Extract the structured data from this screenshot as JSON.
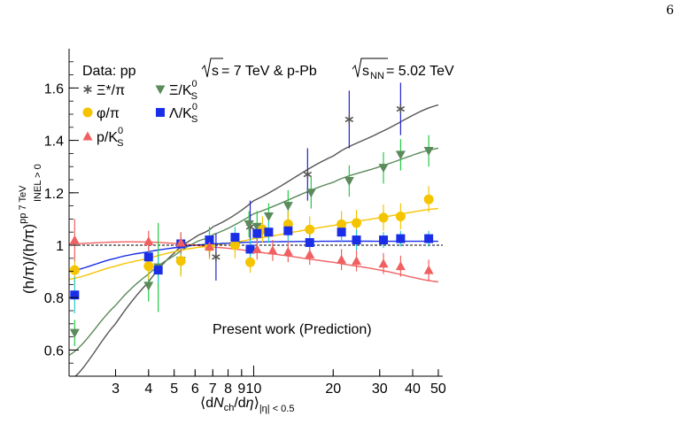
{
  "page_number": "6",
  "chart_data": {
    "type": "scatter",
    "title": "Data: pp √s = 7 TeV & p-Pb √sNN = 5.02 TeV",
    "title_parts": {
      "prefix": "Data: pp ",
      "sqrt1": "s",
      "mid": " = 7 TeV & p-Pb ",
      "sqrt2": "s",
      "sqrt2_sub": "NN",
      "suffix": " =  5.02 TeV"
    },
    "annotation": "Present work (Prediction)",
    "xlabel": "⟨dNch/dη⟩|η| < 0.5",
    "xlabel_parts": {
      "open": "⟨d",
      "N": "N",
      "ch": "ch",
      "slash": "/d",
      "eta": "η",
      "close": "⟩",
      "sub": "|η| < 0.5"
    },
    "ylabel": "(h/π)/(h/π)INEL>0 pp 7 TeV",
    "ylabel_parts": {
      "main": "(h/π)/(h/π)",
      "sup": "pp 7 TeV",
      "sub": "INEL > 0"
    },
    "x_scale": "log",
    "xlim": [
      2.0,
      52
    ],
    "ylim": [
      0.5,
      1.75
    ],
    "x_ticks": [
      {
        "value": 3,
        "label": "3"
      },
      {
        "value": 4,
        "label": "4"
      },
      {
        "value": 5,
        "label": "5"
      },
      {
        "value": 6,
        "label": "6"
      },
      {
        "value": 7,
        "label": "7"
      },
      {
        "value": 8,
        "label": "8"
      },
      {
        "value": 9,
        "label": "9"
      },
      {
        "value": 10,
        "label": "10"
      },
      {
        "value": 20,
        "label": "20"
      },
      {
        "value": 30,
        "label": "30"
      },
      {
        "value": 40,
        "label": "40"
      },
      {
        "value": 50,
        "label": "50"
      }
    ],
    "y_ticks": [
      {
        "value": 0.6,
        "label": "0.6"
      },
      {
        "value": 0.8,
        "label": "0.8"
      },
      {
        "value": 1.0,
        "label": "1"
      },
      {
        "value": 1.2,
        "label": "1.2"
      },
      {
        "value": 1.4,
        "label": "1.4"
      },
      {
        "value": 1.6,
        "label": "1.6"
      }
    ],
    "reference_line": 1.0,
    "legend_position": "top-left",
    "series": [
      {
        "name": "Ξ*/π",
        "legend_main": "Ξ*/π",
        "legend_sup": "",
        "legend_sub": "",
        "marker": "star",
        "color": "#555555",
        "err_color": "#2222cc",
        "curve": [
          [
            2.0,
            0.48
          ],
          [
            3,
            0.7
          ],
          [
            4,
            0.86
          ],
          [
            5,
            0.97
          ],
          [
            6,
            1.03
          ],
          [
            7,
            1.07
          ],
          [
            10,
            1.17
          ],
          [
            20,
            1.34
          ],
          [
            30,
            1.43
          ],
          [
            50,
            1.535
          ]
        ],
        "points": [
          {
            "x": 7.2,
            "y": 0.955,
            "err": 0.09
          },
          {
            "x": 9.7,
            "y": 1.07,
            "err": 0.1
          },
          {
            "x": 16,
            "y": 1.27,
            "err": 0.1
          },
          {
            "x": 23,
            "y": 1.48,
            "err": 0.11
          },
          {
            "x": 36,
            "y": 1.52,
            "err": 0.1
          }
        ]
      },
      {
        "name": "Ξ/K0S",
        "legend_main": "Ξ/K",
        "legend_sup": "0",
        "legend_sub": "S",
        "marker": "triangle-down",
        "color": "#5b8a5b",
        "err_color": "#22cc44",
        "curve": [
          [
            2.0,
            0.58
          ],
          [
            3,
            0.77
          ],
          [
            4,
            0.89
          ],
          [
            5,
            0.96
          ],
          [
            6,
            1.01
          ],
          [
            7,
            1.04
          ],
          [
            10,
            1.12
          ],
          [
            20,
            1.24
          ],
          [
            30,
            1.3
          ],
          [
            50,
            1.37
          ]
        ],
        "points": [
          {
            "x": 2.1,
            "y": 0.665,
            "err": 0.05
          },
          {
            "x": 4.0,
            "y": 0.845,
            "err": 0.06
          },
          {
            "x": 4.35,
            "y": 0.915,
            "err": 0.17
          },
          {
            "x": 5.3,
            "y": 0.94,
            "err": 0.05
          },
          {
            "x": 6.8,
            "y": 1.02,
            "err": 0.05
          },
          {
            "x": 9.6,
            "y": 1.08,
            "err": 0.05
          },
          {
            "x": 10.3,
            "y": 1.07,
            "err": 0.06
          },
          {
            "x": 11.4,
            "y": 1.11,
            "err": 0.05
          },
          {
            "x": 13.5,
            "y": 1.15,
            "err": 0.06
          },
          {
            "x": 16.5,
            "y": 1.2,
            "err": 0.06
          },
          {
            "x": 23,
            "y": 1.245,
            "err": 0.06
          },
          {
            "x": 31,
            "y": 1.295,
            "err": 0.06
          },
          {
            "x": 36,
            "y": 1.345,
            "err": 0.06
          },
          {
            "x": 46,
            "y": 1.36,
            "err": 0.06
          }
        ]
      },
      {
        "name": "φ/π",
        "legend_main": "φ/π",
        "legend_sup": "",
        "legend_sub": "",
        "marker": "circle",
        "color": "#f5c400",
        "err_color": "#f5c400",
        "curve": [
          [
            2.0,
            0.87
          ],
          [
            3,
            0.92
          ],
          [
            4,
            0.95
          ],
          [
            5,
            0.975
          ],
          [
            6,
            0.99
          ],
          [
            7,
            1.0
          ],
          [
            10,
            1.025
          ],
          [
            20,
            1.075
          ],
          [
            30,
            1.105
          ],
          [
            50,
            1.14
          ]
        ],
        "points": [
          {
            "x": 2.1,
            "y": 0.905,
            "err": 0.06
          },
          {
            "x": 4.0,
            "y": 0.92,
            "err": 0.05
          },
          {
            "x": 5.3,
            "y": 0.94,
            "err": 0.06
          },
          {
            "x": 6.8,
            "y": 0.995,
            "err": 0.05
          },
          {
            "x": 8.5,
            "y": 1.0,
            "err": 0.05
          },
          {
            "x": 9.7,
            "y": 0.935,
            "err": 0.04
          },
          {
            "x": 10.8,
            "y": 1.06,
            "err": 0.05
          },
          {
            "x": 13.5,
            "y": 1.08,
            "err": 0.05
          },
          {
            "x": 16.3,
            "y": 1.06,
            "err": 0.05
          },
          {
            "x": 21.5,
            "y": 1.08,
            "err": 0.05
          },
          {
            "x": 24.5,
            "y": 1.085,
            "err": 0.05
          },
          {
            "x": 31,
            "y": 1.105,
            "err": 0.05
          },
          {
            "x": 36,
            "y": 1.11,
            "err": 0.05
          },
          {
            "x": 46,
            "y": 1.175,
            "err": 0.05
          }
        ]
      },
      {
        "name": "Λ/K0S",
        "legend_main": "Λ/K",
        "legend_sup": "0",
        "legend_sub": "S",
        "marker": "square",
        "color": "#1a2ee8",
        "err_color": "#22cccc",
        "curve": [
          [
            2.0,
            0.9
          ],
          [
            3,
            0.95
          ],
          [
            4,
            0.975
          ],
          [
            5,
            0.99
          ],
          [
            6,
            1.0
          ],
          [
            7,
            1.005
          ],
          [
            10,
            1.012
          ],
          [
            20,
            1.015
          ],
          [
            30,
            1.015
          ],
          [
            50,
            1.015
          ]
        ],
        "points": [
          {
            "x": 2.1,
            "y": 0.81,
            "err": 0.07
          },
          {
            "x": 4.0,
            "y": 0.955,
            "err": 0.05
          },
          {
            "x": 4.35,
            "y": 0.905,
            "err": 0.05
          },
          {
            "x": 5.3,
            "y": 1.005,
            "err": 0.04
          },
          {
            "x": 6.8,
            "y": 1.02,
            "err": 0.04
          },
          {
            "x": 8.5,
            "y": 1.03,
            "err": 0.04
          },
          {
            "x": 9.7,
            "y": 0.985,
            "err": 0.04
          },
          {
            "x": 10.3,
            "y": 1.045,
            "err": 0.04
          },
          {
            "x": 11.4,
            "y": 1.05,
            "err": 0.04
          },
          {
            "x": 13.5,
            "y": 1.055,
            "err": 0.04
          },
          {
            "x": 16.3,
            "y": 1.01,
            "err": 0.04
          },
          {
            "x": 21.5,
            "y": 1.05,
            "err": 0.04
          },
          {
            "x": 24.5,
            "y": 1.02,
            "err": 0.04
          },
          {
            "x": 31,
            "y": 1.02,
            "err": 0.03
          },
          {
            "x": 36,
            "y": 1.025,
            "err": 0.03
          },
          {
            "x": 46,
            "y": 1.025,
            "err": 0.03
          }
        ]
      },
      {
        "name": "p/K0S",
        "legend_main": "p/K",
        "legend_sup": "0",
        "legend_sub": "S",
        "marker": "triangle-up",
        "color": "#f06060",
        "err_color": "#f06060",
        "curve": [
          [
            2.0,
            1.005
          ],
          [
            3,
            1.012
          ],
          [
            4,
            1.012
          ],
          [
            5,
            1.007
          ],
          [
            6,
            1.0
          ],
          [
            7,
            0.993
          ],
          [
            10,
            0.975
          ],
          [
            20,
            0.935
          ],
          [
            30,
            0.905
          ],
          [
            50,
            0.86
          ]
        ],
        "points": [
          {
            "x": 2.1,
            "y": 1.02,
            "err": 0.08
          },
          {
            "x": 4.0,
            "y": 1.015,
            "err": 0.04
          },
          {
            "x": 5.3,
            "y": 1.01,
            "err": 0.04
          },
          {
            "x": 6.8,
            "y": 0.995,
            "err": 0.04
          },
          {
            "x": 10.3,
            "y": 0.985,
            "err": 0.04
          },
          {
            "x": 11.8,
            "y": 0.98,
            "err": 0.04
          },
          {
            "x": 13.5,
            "y": 0.975,
            "err": 0.04
          },
          {
            "x": 16.3,
            "y": 0.965,
            "err": 0.04
          },
          {
            "x": 21.5,
            "y": 0.945,
            "err": 0.04
          },
          {
            "x": 24.5,
            "y": 0.94,
            "err": 0.04
          },
          {
            "x": 31,
            "y": 0.93,
            "err": 0.04
          },
          {
            "x": 36,
            "y": 0.92,
            "err": 0.04
          },
          {
            "x": 46,
            "y": 0.905,
            "err": 0.04
          }
        ]
      }
    ]
  }
}
